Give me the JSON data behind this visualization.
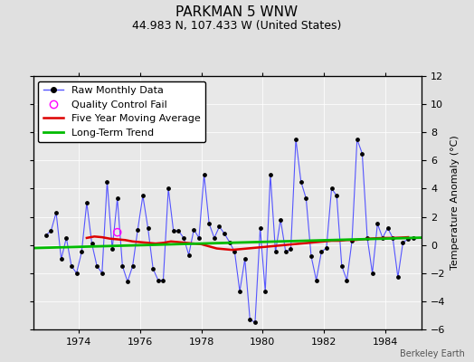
{
  "title": "PARKMAN 5 WNW",
  "subtitle": "44.983 N, 107.433 W (United States)",
  "ylabel": "Temperature Anomaly (°C)",
  "footer": "Berkeley Earth",
  "ylim": [
    -6,
    12
  ],
  "yticks": [
    -6,
    -4,
    -2,
    0,
    2,
    4,
    6,
    8,
    10,
    12
  ],
  "xlim_start": 1972.5,
  "xlim_end": 1985.2,
  "xticks": [
    1974,
    1976,
    1978,
    1980,
    1982,
    1984
  ],
  "background_color": "#e0e0e0",
  "plot_bg_color": "#e8e8e8",
  "raw_x": [
    1972.917,
    1973.083,
    1973.25,
    1973.417,
    1973.583,
    1973.75,
    1973.917,
    1974.083,
    1974.25,
    1974.417,
    1974.583,
    1974.75,
    1974.917,
    1975.083,
    1975.25,
    1975.417,
    1975.583,
    1975.75,
    1975.917,
    1976.083,
    1976.25,
    1976.417,
    1976.583,
    1976.75,
    1976.917,
    1977.083,
    1977.25,
    1977.417,
    1977.583,
    1977.75,
    1977.917,
    1978.083,
    1978.25,
    1978.417,
    1978.583,
    1978.75,
    1978.917,
    1979.083,
    1979.25,
    1979.417,
    1979.583,
    1979.75,
    1979.917,
    1980.083,
    1980.25,
    1980.417,
    1980.583,
    1980.75,
    1980.917,
    1981.083,
    1981.25,
    1981.417,
    1981.583,
    1981.75,
    1981.917,
    1982.083,
    1982.25,
    1982.417,
    1982.583,
    1982.75,
    1982.917,
    1983.083,
    1983.25,
    1983.417,
    1983.583,
    1983.75,
    1983.917,
    1984.083,
    1984.25,
    1984.417,
    1984.583,
    1984.75,
    1984.917
  ],
  "raw_y": [
    0.7,
    1.0,
    2.3,
    -1.0,
    0.5,
    -1.5,
    -2.0,
    -0.5,
    3.0,
    0.1,
    -1.5,
    -2.0,
    4.5,
    -0.3,
    3.3,
    -1.5,
    -2.6,
    -1.5,
    1.1,
    3.5,
    1.2,
    -1.7,
    -2.5,
    -2.5,
    4.0,
    1.0,
    1.0,
    0.5,
    -0.7,
    1.1,
    0.5,
    5.0,
    1.5,
    0.5,
    1.3,
    0.8,
    0.2,
    -0.5,
    -3.3,
    -1.0,
    -5.3,
    -5.5,
    1.2,
    -3.3,
    5.0,
    -0.5,
    1.8,
    -0.5,
    -0.3,
    7.5,
    4.5,
    3.3,
    -0.8,
    -2.5,
    -0.5,
    -0.2,
    4.0,
    3.5,
    -1.5,
    -2.5,
    0.3,
    7.5,
    6.5,
    0.5,
    -2.0,
    1.5,
    0.5,
    1.2,
    0.5,
    -2.3,
    0.2,
    0.4,
    0.5
  ],
  "qc_x": [
    1975.25
  ],
  "qc_y": [
    0.9
  ],
  "moving_avg_x": [
    1974.25,
    1974.5,
    1974.75,
    1975.0,
    1975.25,
    1975.5,
    1975.75,
    1976.0,
    1976.25,
    1976.5,
    1976.75,
    1977.0,
    1977.25,
    1977.5,
    1977.75,
    1978.0,
    1978.25,
    1978.5,
    1978.75,
    1979.0,
    1979.25,
    1979.5,
    1979.75,
    1980.0,
    1980.25,
    1980.5,
    1980.75,
    1981.0,
    1981.25,
    1981.5,
    1981.75,
    1982.0,
    1982.25,
    1982.5,
    1982.75,
    1983.0,
    1983.25,
    1983.5,
    1983.75,
    1984.0,
    1984.25,
    1984.5,
    1984.75
  ],
  "moving_avg_y": [
    0.5,
    0.6,
    0.55,
    0.45,
    0.4,
    0.35,
    0.25,
    0.2,
    0.15,
    0.1,
    0.15,
    0.25,
    0.2,
    0.15,
    0.1,
    0.05,
    -0.1,
    -0.25,
    -0.3,
    -0.35,
    -0.3,
    -0.25,
    -0.2,
    -0.15,
    -0.1,
    -0.05,
    0.0,
    0.05,
    0.1,
    0.15,
    0.2,
    0.25,
    0.3,
    0.3,
    0.35,
    0.35,
    0.4,
    0.45,
    0.48,
    0.5,
    0.5,
    0.52,
    0.55
  ],
  "trend_x": [
    1972.5,
    1985.2
  ],
  "trend_y": [
    -0.22,
    0.52
  ],
  "raw_line_color": "#5555ff",
  "raw_marker_color": "#000000",
  "qc_marker_color": "#ff00ff",
  "moving_avg_color": "#dd0000",
  "trend_color": "#00bb00",
  "title_fontsize": 11,
  "subtitle_fontsize": 9,
  "axis_fontsize": 8,
  "legend_fontsize": 8,
  "title_fontweight": "normal"
}
